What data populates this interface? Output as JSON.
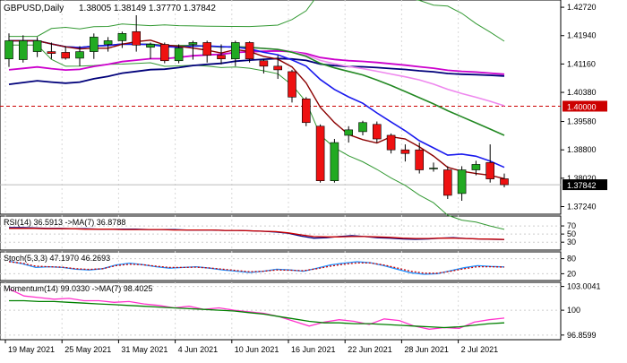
{
  "chart_data": [
    {
      "type": "candlestick",
      "title": "GBPUSD,Daily",
      "ohlc_header": "1.38005 1.38149 1.37770 1.37842",
      "y_ticks": [
        "1.42720",
        "1.41940",
        "1.41160",
        "1.40380",
        "1.39580",
        "1.38800",
        "1.38020",
        "1.37240"
      ],
      "ylim": [
        1.3708,
        1.4287
      ],
      "x_labels": [
        "19 May 2021",
        "25 May 2021",
        "31 May 2021",
        "4 Jun 2021",
        "10 Jun 2021",
        "16 Jun 2021",
        "22 Jun 2021",
        "28 Jun 2021",
        "2 Jul 2021"
      ],
      "x_label_index": [
        0,
        4,
        8,
        12,
        16,
        20,
        24,
        28,
        32
      ],
      "level_line": {
        "value": 1.4,
        "label": "1.40000",
        "color": "#cc0000"
      },
      "current_price": {
        "value": 1.37842,
        "label": "1.37842"
      },
      "candles": [
        {
          "o": 1.413,
          "h": 1.42,
          "l": 1.4108,
          "c": 1.418
        },
        {
          "o": 1.4128,
          "h": 1.4195,
          "l": 1.412,
          "c": 1.418
        },
        {
          "o": 1.415,
          "h": 1.419,
          "l": 1.4135,
          "c": 1.418
        },
        {
          "o": 1.415,
          "h": 1.4175,
          "l": 1.413,
          "c": 1.4145
        },
        {
          "o": 1.4148,
          "h": 1.4165,
          "l": 1.4128,
          "c": 1.4132
        },
        {
          "o": 1.4132,
          "h": 1.4165,
          "l": 1.411,
          "c": 1.415
        },
        {
          "o": 1.415,
          "h": 1.42,
          "l": 1.413,
          "c": 1.419
        },
        {
          "o": 1.417,
          "h": 1.419,
          "l": 1.415,
          "c": 1.418
        },
        {
          "o": 1.418,
          "h": 1.4205,
          "l": 1.416,
          "c": 1.42
        },
        {
          "o": 1.4205,
          "h": 1.425,
          "l": 1.415,
          "c": 1.4168
        },
        {
          "o": 1.4162,
          "h": 1.4175,
          "l": 1.413,
          "c": 1.417
        },
        {
          "o": 1.417,
          "h": 1.4175,
          "l": 1.4118,
          "c": 1.4125
        },
        {
          "o": 1.4125,
          "h": 1.417,
          "l": 1.4118,
          "c": 1.416
        },
        {
          "o": 1.417,
          "h": 1.418,
          "l": 1.4128,
          "c": 1.4175
        },
        {
          "o": 1.4175,
          "h": 1.418,
          "l": 1.412,
          "c": 1.414
        },
        {
          "o": 1.414,
          "h": 1.417,
          "l": 1.4115,
          "c": 1.413
        },
        {
          "o": 1.413,
          "h": 1.418,
          "l": 1.411,
          "c": 1.4175
        },
        {
          "o": 1.4175,
          "h": 1.4178,
          "l": 1.412,
          "c": 1.413
        },
        {
          "o": 1.4125,
          "h": 1.413,
          "l": 1.409,
          "c": 1.411
        },
        {
          "o": 1.411,
          "h": 1.414,
          "l": 1.4075,
          "c": 1.41
        },
        {
          "o": 1.4095,
          "h": 1.41,
          "l": 1.401,
          "c": 1.4025
        },
        {
          "o": 1.402,
          "h": 1.4025,
          "l": 1.3945,
          "c": 1.3955
        },
        {
          "o": 1.3945,
          "h": 1.395,
          "l": 1.379,
          "c": 1.3795
        },
        {
          "o": 1.3795,
          "h": 1.391,
          "l": 1.379,
          "c": 1.39
        },
        {
          "o": 1.392,
          "h": 1.3945,
          "l": 1.39,
          "c": 1.3935
        },
        {
          "o": 1.393,
          "h": 1.396,
          "l": 1.392,
          "c": 1.3955
        },
        {
          "o": 1.395,
          "h": 1.3958,
          "l": 1.39,
          "c": 1.391
        },
        {
          "o": 1.392,
          "h": 1.3925,
          "l": 1.387,
          "c": 1.388
        },
        {
          "o": 1.388,
          "h": 1.3895,
          "l": 1.3848,
          "c": 1.387
        },
        {
          "o": 1.388,
          "h": 1.39,
          "l": 1.3815,
          "c": 1.3825
        },
        {
          "o": 1.383,
          "h": 1.3845,
          "l": 1.382,
          "c": 1.383
        },
        {
          "o": 1.3825,
          "h": 1.3835,
          "l": 1.3745,
          "c": 1.3755
        },
        {
          "o": 1.376,
          "h": 1.3835,
          "l": 1.374,
          "c": 1.3825
        },
        {
          "o": 1.3825,
          "h": 1.385,
          "l": 1.381,
          "c": 1.384
        },
        {
          "o": 1.3845,
          "h": 1.3895,
          "l": 1.379,
          "c": 1.38
        },
        {
          "o": 1.38005,
          "h": 1.38149,
          "l": 1.3777,
          "c": 1.37842
        }
      ],
      "colors": {
        "up": "#22aa22",
        "down": "#ee1111",
        "wick": "#000000"
      }
    },
    {
      "type": "line",
      "title": "RSI(14) 36.5913 ->MA(7) 36.8788",
      "y_ticks": [
        "70",
        "50",
        "30"
      ],
      "ylim": [
        15,
        90
      ],
      "series": [
        {
          "color": "#000080",
          "values": [
            66,
            66,
            65,
            64,
            64,
            63,
            63,
            62,
            62,
            62,
            62,
            61,
            61,
            61,
            60,
            60,
            60,
            59,
            59,
            58,
            57,
            55,
            52,
            45,
            40,
            41,
            44,
            46,
            44,
            41,
            40,
            38,
            37,
            38,
            40,
            41,
            39,
            38,
            37,
            36.6
          ]
        },
        {
          "color": "#cc0000",
          "values": [
            64,
            64,
            64,
            63,
            63,
            63,
            62,
            62,
            62,
            61,
            61,
            61,
            61,
            60,
            60,
            60,
            60,
            59,
            59,
            58,
            57,
            56,
            53,
            48,
            44,
            43,
            43,
            44,
            44,
            43,
            42,
            40,
            39,
            39,
            40,
            40,
            39,
            38,
            37.5,
            36.9
          ]
        }
      ]
    },
    {
      "type": "line",
      "title": "Stoch(5,3,3) 47.1970 46.2693",
      "y_ticks": [
        "80",
        "20"
      ],
      "ylim": [
        0,
        100
      ],
      "series": [
        {
          "color": "#1e90ff",
          "values": [
            70,
            60,
            45,
            48,
            45,
            38,
            35,
            40,
            55,
            62,
            56,
            48,
            42,
            45,
            48,
            42,
            35,
            30,
            25,
            30,
            38,
            35,
            30,
            42,
            55,
            62,
            68,
            64,
            52,
            38,
            24,
            18,
            20,
            32,
            44,
            52,
            49,
            47.2
          ]
        },
        {
          "color": "#cc0000",
          "values": [
            68,
            62,
            50,
            48,
            46,
            40,
            37,
            40,
            52,
            58,
            56,
            50,
            45,
            45,
            46,
            43,
            38,
            33,
            28,
            30,
            35,
            34,
            32,
            40,
            50,
            58,
            63,
            63,
            55,
            43,
            30,
            22,
            22,
            30,
            40,
            48,
            48,
            46.3
          ]
        }
      ]
    },
    {
      "type": "line",
      "title": "Momentum(14) 99.0330 ->MA(7) 98.4025",
      "y_ticks": [
        "103.0041",
        "100",
        "96.8599"
      ],
      "ylim": [
        96.5,
        103.3
      ],
      "series": [
        {
          "color": "#ff33cc",
          "values": [
            102.7,
            101.8,
            101.6,
            101.4,
            101.5,
            101.2,
            101.2,
            101.0,
            101.1,
            100.8,
            100.6,
            100.3,
            100.5,
            100.1,
            100.3,
            100.0,
            99.8,
            99.6,
            99.2,
            98.6,
            98.0,
            98.5,
            98.8,
            98.6,
            98.2,
            98.9,
            98.7,
            98.0,
            97.6,
            97.8,
            97.7,
            98.5,
            98.8,
            99.0
          ]
        },
        {
          "color": "#008000",
          "values": [
            101.2,
            101.2,
            101.1,
            101.1,
            101.0,
            100.9,
            100.8,
            100.7,
            100.6,
            100.5,
            100.4,
            100.3,
            100.2,
            100.1,
            100.0,
            99.9,
            99.7,
            99.5,
            99.2,
            98.9,
            98.6,
            98.4,
            98.4,
            98.3,
            98.3,
            98.2,
            98.1,
            98.0,
            97.9,
            97.8,
            97.9,
            98.1,
            98.3,
            98.4
          ]
        }
      ]
    }
  ]
}
